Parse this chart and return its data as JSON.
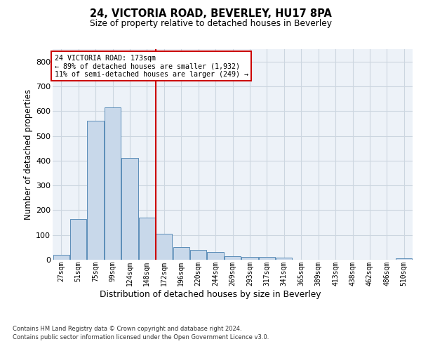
{
  "title1": "24, VICTORIA ROAD, BEVERLEY, HU17 8PA",
  "title2": "Size of property relative to detached houses in Beverley",
  "xlabel": "Distribution of detached houses by size in Beverley",
  "ylabel": "Number of detached properties",
  "bins": [
    "27sqm",
    "51sqm",
    "75sqm",
    "99sqm",
    "124sqm",
    "148sqm",
    "172sqm",
    "196sqm",
    "220sqm",
    "244sqm",
    "269sqm",
    "293sqm",
    "317sqm",
    "341sqm",
    "365sqm",
    "389sqm",
    "413sqm",
    "438sqm",
    "462sqm",
    "486sqm",
    "510sqm"
  ],
  "bar_values": [
    20,
    165,
    560,
    615,
    412,
    170,
    105,
    50,
    40,
    30,
    15,
    10,
    10,
    8,
    0,
    0,
    0,
    0,
    0,
    0,
    7
  ],
  "bar_color": "#c8d8ea",
  "bar_edge_color": "#5b8db8",
  "grid_color": "#ccd6e0",
  "vline_color": "#cc0000",
  "vline_index": 6,
  "annotation_text": "24 VICTORIA ROAD: 173sqm\n← 89% of detached houses are smaller (1,932)\n11% of semi-detached houses are larger (249) →",
  "annotation_box_color": "#ffffff",
  "annotation_edge_color": "#cc0000",
  "bg_color": "#edf2f8",
  "ylim": [
    0,
    850
  ],
  "yticks": [
    0,
    100,
    200,
    300,
    400,
    500,
    600,
    700,
    800
  ],
  "footer1": "Contains HM Land Registry data © Crown copyright and database right 2024.",
  "footer2": "Contains public sector information licensed under the Open Government Licence v3.0."
}
